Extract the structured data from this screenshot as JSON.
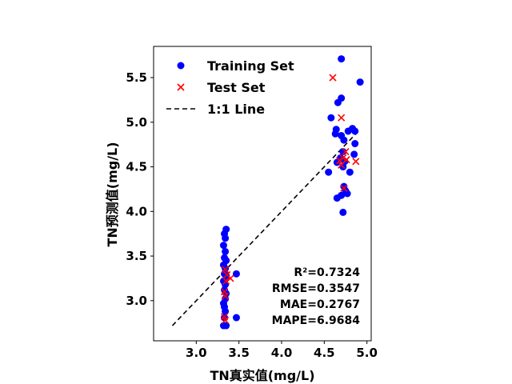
{
  "chart_data": {
    "type": "scatter",
    "xlabel": "TN真实值(mg/L)",
    "ylabel": "TN预测值(mg/L)",
    "xlim": [
      2.5,
      5.05
    ],
    "ylim": [
      2.55,
      5.85
    ],
    "xticks": [
      "3.0",
      "3.5",
      "4.0",
      "4.5",
      "5.0"
    ],
    "xtick_values": [
      3.0,
      3.5,
      4.0,
      4.5,
      5.0
    ],
    "yticks": [
      "3.0",
      "3.5",
      "4.0",
      "4.5",
      "5.0",
      "5.5"
    ],
    "ytick_values": [
      3.0,
      3.5,
      4.0,
      4.5,
      5.0,
      5.5
    ],
    "legend_position": "upper-left",
    "series": [
      {
        "name": "Training Set",
        "marker": "circle",
        "color": "#0000ff",
        "points": [
          [
            3.35,
            3.8
          ],
          [
            3.33,
            3.75
          ],
          [
            3.34,
            3.7
          ],
          [
            3.32,
            3.62
          ],
          [
            3.34,
            3.55
          ],
          [
            3.33,
            3.48
          ],
          [
            3.35,
            3.45
          ],
          [
            3.32,
            3.4
          ],
          [
            3.34,
            3.36
          ],
          [
            3.33,
            3.3
          ],
          [
            3.35,
            3.28
          ],
          [
            3.47,
            3.3
          ],
          [
            3.32,
            3.22
          ],
          [
            3.34,
            3.18
          ],
          [
            3.33,
            3.12
          ],
          [
            3.35,
            3.08
          ],
          [
            3.34,
            3.02
          ],
          [
            3.32,
            2.97
          ],
          [
            3.33,
            2.93
          ],
          [
            3.34,
            2.88
          ],
          [
            3.33,
            2.81
          ],
          [
            3.47,
            2.81
          ],
          [
            3.32,
            2.72
          ],
          [
            3.35,
            2.72
          ],
          [
            4.7,
            5.71
          ],
          [
            4.92,
            5.45
          ],
          [
            4.7,
            5.27
          ],
          [
            4.66,
            5.22
          ],
          [
            4.58,
            5.05
          ],
          [
            4.83,
            4.93
          ],
          [
            4.78,
            4.9
          ],
          [
            4.86,
            4.9
          ],
          [
            4.64,
            4.92
          ],
          [
            4.7,
            4.85
          ],
          [
            4.63,
            4.87
          ],
          [
            4.73,
            4.8
          ],
          [
            4.86,
            4.76
          ],
          [
            4.72,
            4.67
          ],
          [
            4.85,
            4.64
          ],
          [
            4.69,
            4.6
          ],
          [
            4.74,
            4.56
          ],
          [
            4.65,
            4.55
          ],
          [
            4.72,
            4.5
          ],
          [
            4.55,
            4.44
          ],
          [
            4.8,
            4.44
          ],
          [
            4.73,
            4.28
          ],
          [
            4.75,
            4.23
          ],
          [
            4.77,
            4.2
          ],
          [
            4.7,
            4.18
          ],
          [
            4.65,
            4.15
          ],
          [
            4.72,
            3.99
          ]
        ]
      },
      {
        "name": "Test Set",
        "marker": "x",
        "color": "#ff0000",
        "points": [
          [
            3.34,
            3.35
          ],
          [
            3.36,
            3.29
          ],
          [
            3.4,
            3.25
          ],
          [
            3.35,
            3.22
          ],
          [
            3.33,
            3.1
          ],
          [
            3.34,
            3.05
          ],
          [
            3.33,
            2.82
          ],
          [
            3.34,
            2.78
          ],
          [
            4.6,
            5.5
          ],
          [
            4.7,
            5.05
          ],
          [
            4.75,
            4.67
          ],
          [
            4.72,
            4.6
          ],
          [
            4.68,
            4.57
          ],
          [
            4.76,
            4.58
          ],
          [
            4.87,
            4.56
          ],
          [
            4.7,
            4.52
          ],
          [
            4.73,
            4.26
          ]
        ]
      },
      {
        "name": "1:1 Line",
        "marker": "dashed-line",
        "color": "#000000",
        "points": [
          [
            2.72,
            2.72
          ],
          [
            4.92,
            4.92
          ]
        ]
      }
    ],
    "metrics": [
      "R²=0.7324",
      "RMSE=0.3547",
      "MAE=0.2767",
      "MAPE=6.9684"
    ]
  }
}
